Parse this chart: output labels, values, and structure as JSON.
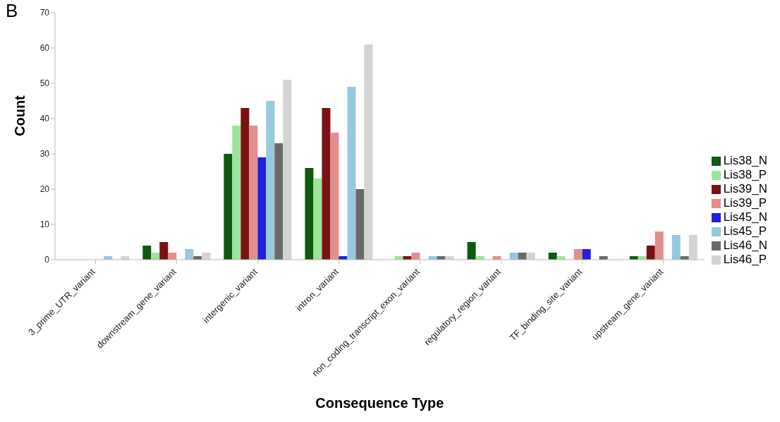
{
  "chart_data": {
    "type": "bar",
    "xlabel": "Consequence Type",
    "ylabel": "Count",
    "annotations": [
      "B"
    ],
    "categories": [
      "3_prime_UTR_variant",
      "downstream_gene_variant",
      "intergenic_variant",
      "intron_variant",
      "non_coding_transcript_exon_variant",
      "regulatory_region_variant",
      "TF_binding_site_variant",
      "upstream_gene_variant"
    ],
    "series": [
      {
        "name": "Lis38_N",
        "color": "#0e5a0e",
        "values": [
          0,
          4,
          30,
          26,
          0,
          5,
          2,
          1
        ]
      },
      {
        "name": "Lis38_P",
        "color": "#9de39d",
        "values": [
          0,
          2,
          38,
          23,
          1,
          1,
          1,
          1
        ]
      },
      {
        "name": "Lis39_N",
        "color": "#7a1212",
        "values": [
          0,
          5,
          43,
          43,
          1,
          0,
          0,
          4
        ]
      },
      {
        "name": "Lis39_P",
        "color": "#e28e8e",
        "values": [
          0,
          2,
          38,
          36,
          2,
          1,
          3,
          8
        ]
      },
      {
        "name": "Lis45_N",
        "color": "#2020e0",
        "values": [
          0,
          0,
          29,
          1,
          0,
          0,
          3,
          0
        ]
      },
      {
        "name": "Lis45_P",
        "color": "#96c9de",
        "values": [
          1,
          3,
          45,
          49,
          1,
          2,
          0,
          7
        ]
      },
      {
        "name": "Lis46_N",
        "color": "#696969",
        "values": [
          0,
          1,
          33,
          20,
          1,
          2,
          1,
          1
        ]
      },
      {
        "name": "Lis46_P",
        "color": "#d3d3d3",
        "values": [
          1,
          2,
          51,
          61,
          1,
          2,
          0,
          7
        ]
      }
    ],
    "ylim": [
      0,
      70
    ],
    "yticks": [
      0,
      10,
      20,
      30,
      40,
      50,
      60,
      70
    ],
    "grid": false,
    "legend": "right"
  }
}
